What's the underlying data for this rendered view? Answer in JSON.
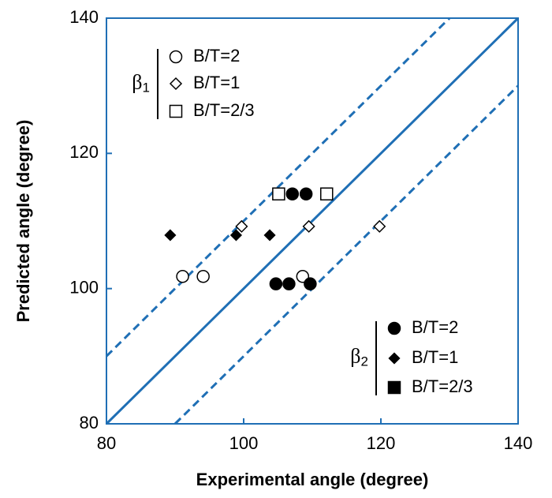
{
  "chart_data": {
    "type": "scatter",
    "x_label": "Experimental angle (degree)",
    "y_label": "Predicted angle (degree)",
    "xlim": [
      80,
      140
    ],
    "ylim": [
      80,
      140
    ],
    "xticks": [
      80,
      100,
      120,
      140
    ],
    "yticks": [
      80,
      100,
      120,
      140
    ],
    "axis_color": "#1f6fb5",
    "reference_lines": [
      {
        "x": [
          80,
          140
        ],
        "y": [
          80,
          140
        ],
        "style": "solid",
        "color": "#1f6fb5"
      },
      {
        "x": [
          80,
          130
        ],
        "y": [
          90,
          140
        ],
        "style": "dashed",
        "color": "#1f6fb5"
      },
      {
        "x": [
          90,
          140
        ],
        "y": [
          80,
          130
        ],
        "style": "dashed",
        "color": "#1f6fb5"
      }
    ],
    "groups": [
      {
        "symbol": "β",
        "subscript": "1",
        "filled": false,
        "series": [
          {
            "name": "B/T=2",
            "marker": "circle",
            "color": "#000000",
            "x": [
              91.1,
              94.1,
              108.6
            ],
            "y": [
              101.8,
              101.8,
              101.8
            ]
          },
          {
            "name": "B/T=1",
            "marker": "diamond",
            "color": "#000000",
            "x": [
              99.7,
              109.5,
              119.8
            ],
            "y": [
              109.2,
              109.2,
              109.2
            ]
          },
          {
            "name": "B/T=2/3",
            "marker": "square",
            "color": "#000000",
            "x": [
              105.1,
              112.1
            ],
            "y": [
              114.0,
              114.0
            ]
          }
        ]
      },
      {
        "symbol": "β",
        "subscript": "2",
        "filled": true,
        "series": [
          {
            "name": "B/T=2",
            "marker": "circle",
            "color": "#000000",
            "x": [
              107.1,
              109.1,
              104.7,
              106.6,
              109.7
            ],
            "y": [
              114.0,
              114.0,
              100.7,
              100.7,
              100.7
            ]
          },
          {
            "name": "B/T=1",
            "marker": "diamond",
            "color": "#000000",
            "x": [
              89.3,
              98.9,
              103.8
            ],
            "y": [
              107.9,
              107.9,
              107.9
            ]
          },
          {
            "name": "B/T=2/3",
            "marker": "square",
            "color": "#000000",
            "x": [],
            "y": []
          }
        ]
      }
    ]
  }
}
